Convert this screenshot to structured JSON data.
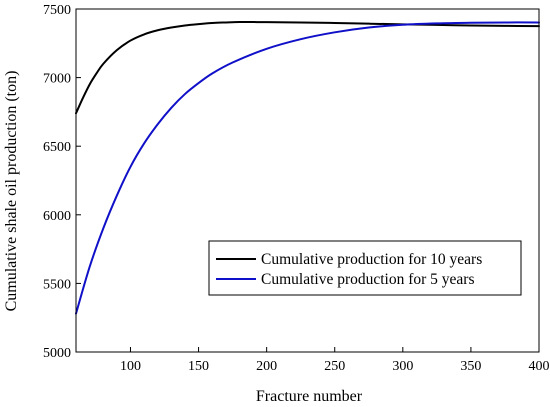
{
  "chart_data": {
    "type": "line",
    "xlabel": "Fracture number",
    "ylabel": "Cumulative shale oil production (ton)",
    "xlim": [
      60,
      400
    ],
    "ylim": [
      5000,
      7500
    ],
    "xticks": [
      100,
      150,
      200,
      250,
      300,
      350,
      400
    ],
    "yticks": [
      5000,
      5500,
      6000,
      6500,
      7000,
      7500
    ],
    "grid": false,
    "legend_position": "lower-right",
    "series": [
      {
        "name": "Cumulative production for 10 years",
        "color": "#000000",
        "x": [
          60,
          65,
          70,
          75,
          80,
          90,
          100,
          110,
          120,
          130,
          140,
          150,
          160,
          170,
          180,
          190,
          200,
          225,
          250,
          275,
          300,
          325,
          350,
          375,
          400
        ],
        "y": [
          6740,
          6850,
          6950,
          7030,
          7100,
          7200,
          7270,
          7315,
          7345,
          7365,
          7380,
          7390,
          7398,
          7402,
          7405,
          7405,
          7404,
          7402,
          7398,
          7393,
          7388,
          7384,
          7380,
          7377,
          7375
        ]
      },
      {
        "name": "Cumulative production for 5 years",
        "color": "#1010c8",
        "x": [
          60,
          70,
          80,
          90,
          100,
          110,
          120,
          130,
          140,
          150,
          160,
          175,
          200,
          225,
          250,
          275,
          300,
          325,
          350,
          375,
          400
        ],
        "y": [
          5280,
          5620,
          5900,
          6140,
          6350,
          6520,
          6660,
          6780,
          6880,
          6960,
          7030,
          7110,
          7210,
          7280,
          7330,
          7365,
          7385,
          7395,
          7400,
          7402,
          7402
        ]
      }
    ]
  }
}
